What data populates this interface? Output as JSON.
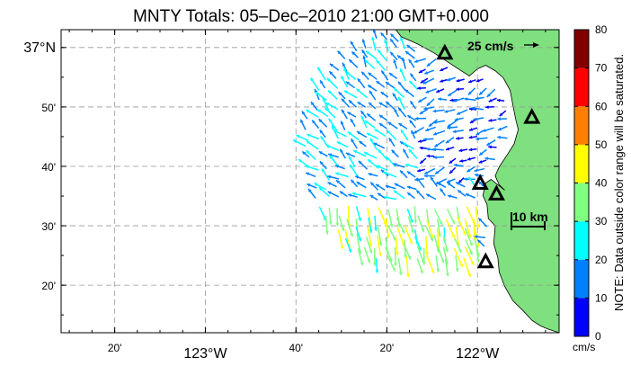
{
  "title": "MNTY Totals: 05–Dec–2010 21:00 GMT+0.000",
  "map": {
    "lon_range": [
      -123.53,
      -121.7
    ],
    "lat_range": [
      36.2,
      37.05
    ],
    "lon_ticks": [
      {
        "value": -123.333,
        "label": "20'",
        "major": false
      },
      {
        "value": -123.0,
        "label": "123°W",
        "major": true
      },
      {
        "value": -122.667,
        "label": "40'",
        "major": false
      },
      {
        "value": -122.333,
        "label": "20'",
        "major": false
      },
      {
        "value": -122.0,
        "label": "122°W",
        "major": true
      }
    ],
    "lat_ticks": [
      {
        "value": 37.0,
        "label": "37°N",
        "major": true
      },
      {
        "value": 36.8333,
        "label": "50'",
        "major": false
      },
      {
        "value": 36.6667,
        "label": "40'",
        "major": false
      },
      {
        "value": 36.5,
        "label": "30'",
        "major": false
      },
      {
        "value": 36.3333,
        "label": "20'",
        "major": false
      }
    ],
    "grid": "dashed",
    "land_color": "#7ee07e",
    "ocean_color": "#ffffff",
    "coastline": [
      [
        -122.3,
        37.05
      ],
      [
        -122.28,
        37.03
      ],
      [
        -122.22,
        37.01
      ],
      [
        -122.16,
        36.985
      ],
      [
        -122.1,
        36.955
      ],
      [
        -122.06,
        36.935
      ],
      [
        -122.03,
        36.92
      ],
      [
        -122.0,
        36.94
      ],
      [
        -121.97,
        36.95
      ],
      [
        -121.935,
        36.935
      ],
      [
        -121.905,
        36.915
      ],
      [
        -121.88,
        36.88
      ],
      [
        -121.87,
        36.84
      ],
      [
        -121.86,
        36.8
      ],
      [
        -121.85,
        36.77
      ],
      [
        -121.865,
        36.73
      ],
      [
        -121.89,
        36.7
      ],
      [
        -121.92,
        36.665
      ],
      [
        -121.935,
        36.64
      ],
      [
        -121.92,
        36.615
      ],
      [
        -121.9,
        36.6
      ],
      [
        -121.95,
        36.63
      ],
      [
        -121.97,
        36.62
      ],
      [
        -121.98,
        36.585
      ],
      [
        -121.965,
        36.56
      ],
      [
        -121.96,
        36.52
      ],
      [
        -121.935,
        36.5
      ],
      [
        -121.94,
        36.45
      ],
      [
        -121.925,
        36.41
      ],
      [
        -121.92,
        36.37
      ],
      [
        -121.9,
        36.33
      ],
      [
        -121.87,
        36.29
      ],
      [
        -121.83,
        36.26
      ],
      [
        -121.8,
        36.235
      ],
      [
        -121.77,
        36.22
      ],
      [
        -121.74,
        36.21
      ],
      [
        -121.7,
        36.2
      ]
    ],
    "stations": [
      {
        "lon": -122.12,
        "lat": 36.985
      },
      {
        "lon": -121.8,
        "lat": 36.805
      },
      {
        "lon": -121.99,
        "lat": 36.62
      },
      {
        "lon": -121.93,
        "lat": 36.59
      },
      {
        "lon": -121.97,
        "lat": 36.4
      }
    ],
    "reference_vector": {
      "label": "25 cm/s",
      "speed": 25
    },
    "scale_bar": {
      "label": "10 km"
    },
    "speed_units": "cm/s",
    "color_bins": [
      {
        "from": 0,
        "to": 10,
        "color": "#0000ff"
      },
      {
        "from": 10,
        "to": 20,
        "color": "#0080ff"
      },
      {
        "from": 20,
        "to": 30,
        "color": "#00ffff"
      },
      {
        "from": 30,
        "to": 40,
        "color": "#80ff80"
      },
      {
        "from": 40,
        "to": 50,
        "color": "#ffff00"
      },
      {
        "from": 50,
        "to": 60,
        "color": "#ff8000"
      },
      {
        "from": 60,
        "to": 70,
        "color": "#ff0000"
      },
      {
        "from": 70,
        "to": 80,
        "color": "#800000"
      }
    ]
  },
  "colorbar": {
    "ticks": [
      "0",
      "10",
      "20",
      "30",
      "40",
      "50",
      "60",
      "70",
      "80"
    ],
    "units": "cm/s",
    "note": "NOTE: Data outside color range will be saturated."
  }
}
